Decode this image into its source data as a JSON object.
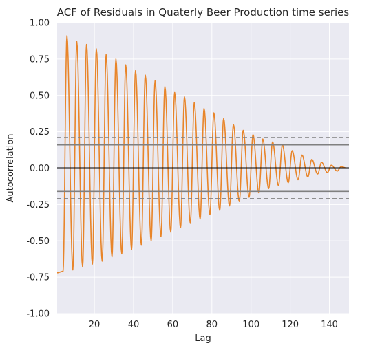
{
  "chart_data": {
    "type": "line",
    "title": "ACF of Residuals in Quaterly Beer Production time series",
    "xlabel": "Lag",
    "ylabel": "Autocorrelation",
    "xlim": [
      1,
      150
    ],
    "ylim": [
      -1.0,
      1.0
    ],
    "x_ticks": [
      20,
      40,
      60,
      80,
      100,
      120,
      140
    ],
    "y_ticks": [
      "-1.00",
      "-0.75",
      "-0.50",
      "-0.25",
      "0.00",
      "0.25",
      "0.50",
      "0.75",
      "1.00"
    ],
    "grid": true,
    "series": [
      {
        "color": "#e8852a",
        "period": 4,
        "lag_start": 1,
        "lag_end": 150,
        "peak_lags": [
          6,
          11,
          16,
          21,
          26,
          31,
          36,
          41,
          46,
          51,
          56,
          61,
          66,
          71,
          76,
          81,
          86,
          91,
          96,
          101,
          106,
          111,
          116,
          121,
          126,
          131,
          136,
          141,
          146
        ],
        "peak_values": [
          0.91,
          0.87,
          0.85,
          0.82,
          0.78,
          0.75,
          0.71,
          0.67,
          0.64,
          0.6,
          0.56,
          0.52,
          0.49,
          0.45,
          0.41,
          0.38,
          0.34,
          0.3,
          0.26,
          0.23,
          0.2,
          0.18,
          0.16,
          0.12,
          0.09,
          0.06,
          0.04,
          0.02,
          0.01
        ],
        "trough_lags": [
          1,
          4,
          9,
          14,
          19,
          24,
          29,
          34,
          39,
          44,
          49,
          54,
          59,
          64,
          69,
          74,
          79,
          84,
          89,
          94,
          99,
          104,
          109,
          114,
          119,
          124,
          129,
          134,
          139,
          144,
          149
        ],
        "trough_values": [
          -0.72,
          -0.71,
          -0.7,
          -0.68,
          -0.66,
          -0.64,
          -0.61,
          -0.59,
          -0.56,
          -0.53,
          -0.5,
          -0.47,
          -0.44,
          -0.41,
          -0.38,
          -0.35,
          -0.32,
          -0.29,
          -0.26,
          -0.23,
          -0.2,
          -0.17,
          -0.14,
          -0.12,
          -0.1,
          -0.08,
          -0.06,
          -0.04,
          -0.03,
          -0.02,
          0.0
        ]
      }
    ],
    "reference_lines": [
      {
        "y": 0.0,
        "style": "solid",
        "color": "#000000"
      },
      {
        "y": 0.16,
        "style": "solid",
        "color": "#808080"
      },
      {
        "y": -0.16,
        "style": "solid",
        "color": "#808080"
      },
      {
        "y": 0.21,
        "style": "dashed",
        "color": "#808080"
      },
      {
        "y": -0.21,
        "style": "dashed",
        "color": "#808080"
      }
    ],
    "colors": {
      "plot_background": "#eaeaf2",
      "grid": "#ffffff",
      "series": "#e8852a"
    }
  }
}
